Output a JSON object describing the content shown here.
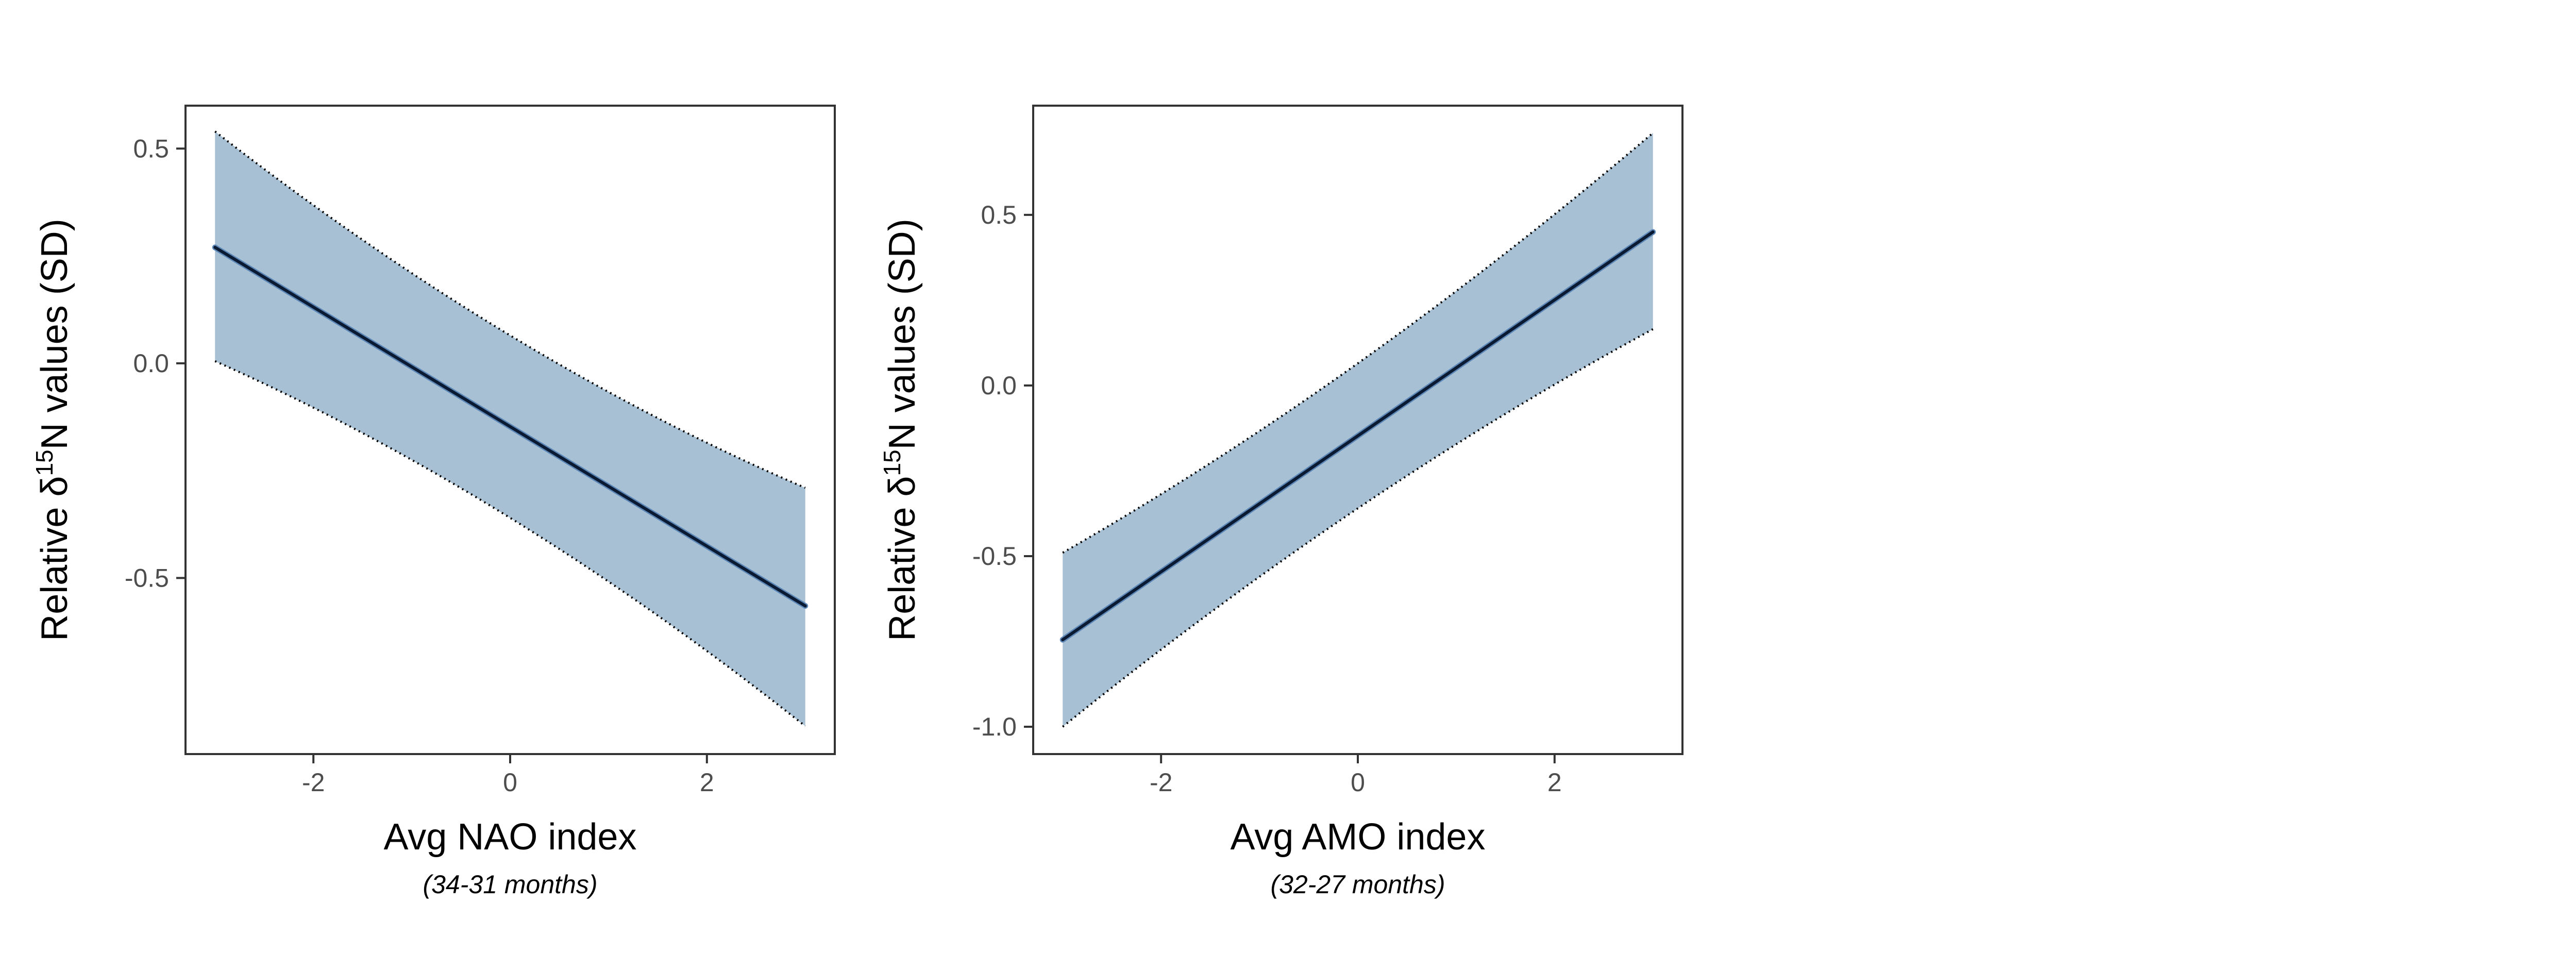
{
  "chart_data": [
    {
      "type": "line",
      "title": "",
      "xlabel": "Avg NAO index",
      "xlabel_note": "(34-31 months)",
      "ylabel_parts": {
        "pre": "Relative δ",
        "sup": "15",
        "post": "N values (SD)"
      },
      "xlim": [
        -3.3,
        3.3
      ],
      "ylim": [
        -0.91,
        0.6
      ],
      "xticks": [
        -2,
        0,
        2
      ],
      "xtick_labels": [
        "-2",
        "0",
        "2"
      ],
      "yticks": [
        0.5,
        0.0,
        -0.5
      ],
      "ytick_labels": [
        "0.5",
        "0.0",
        "-0.5"
      ],
      "grid": false,
      "series": [
        {
          "x": [
            -3,
            3
          ],
          "y": [
            0.27,
            -0.565
          ],
          "lower": [
            0.005,
            -0.845
          ],
          "upper": [
            0.54,
            -0.29
          ],
          "mid": {
            "x": 0,
            "y": -0.145,
            "lower": -0.36,
            "upper": 0.065
          }
        }
      ],
      "colors": {
        "line": "#0b1a33",
        "ribbon": "#a7c0d4",
        "bound": "#000000",
        "frame": "#333333"
      }
    },
    {
      "type": "line",
      "title": "",
      "xlabel": "Avg AMO index",
      "xlabel_note": "(32-27 months)",
      "ylabel_parts": {
        "pre": "Relative δ",
        "sup": "15",
        "post": "N values (SD)"
      },
      "xlim": [
        -3.3,
        3.3
      ],
      "ylim": [
        -1.08,
        0.82
      ],
      "xticks": [
        -2,
        0,
        2
      ],
      "xtick_labels": [
        "-2",
        "0",
        "2"
      ],
      "yticks": [
        0.5,
        0.0,
        -0.5,
        -1.0
      ],
      "ytick_labels": [
        "0.5",
        "0.0",
        "-0.5",
        "-1.0"
      ],
      "grid": false,
      "series": [
        {
          "x": [
            -3,
            3
          ],
          "y": [
            -0.745,
            0.45
          ],
          "lower": [
            -1.0,
            0.165
          ],
          "upper": [
            -0.49,
            0.74
          ],
          "mid": {
            "x": 0,
            "y": -0.145,
            "lower": -0.36,
            "upper": 0.065
          }
        }
      ],
      "colors": {
        "line": "#0b1a33",
        "ribbon": "#a7c0d4",
        "bound": "#000000",
        "frame": "#333333"
      }
    }
  ]
}
